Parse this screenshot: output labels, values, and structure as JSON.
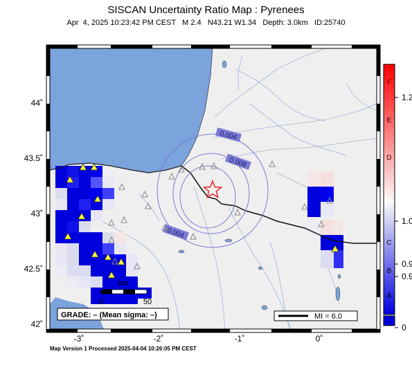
{
  "title": "SISCAN Uncertainty Ratio Map : Pyrenees",
  "subtitle": "Apr  4, 2025 10:23:42 PM CEST   M 2.4   N43.21 W1.34   Depth: 3.0km   ID:25740",
  "footer": "Map Version 1 Processed 2025-04-04 10:26:05 PM CEST",
  "axes": {
    "lon_ticks": [
      "-3˚",
      "-2˚",
      "-1˚",
      "0˚"
    ],
    "lat_ticks": [
      "44˚",
      "43.5˚",
      "43˚",
      "42.5˚",
      "42˚"
    ]
  },
  "contour_labels": [
    "0.004",
    "0.008",
    "0.004"
  ],
  "grade_box": "GRADE: – (Mean sigma: –)",
  "mi_box": "MI = 6.0",
  "scale_bar": {
    "title": "km",
    "start": "0",
    "end": "50"
  },
  "colorbar": {
    "letters": [
      "F",
      "E",
      "D",
      "C",
      "B",
      "A"
    ],
    "values": [
      "1.2",
      "1.0",
      "0.9",
      "0.9",
      "0"
    ]
  },
  "colors": {
    "ocean": "#7ba3dc",
    "land": "#efefef",
    "rivers": "#9fb4d8",
    "contour": "#7a7ad6",
    "epicenter": "#ee2222",
    "station": "#ffff33",
    "cell_blue": "#0000dd"
  },
  "icons": [
    "epicenter-star-icon",
    "station-triangle-icon"
  ]
}
